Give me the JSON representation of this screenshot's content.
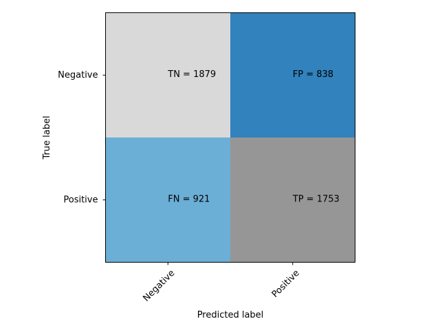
{
  "chart_data": {
    "type": "heatmap",
    "title": "",
    "xlabel": "Predicted label",
    "ylabel": "True label",
    "x_categories": [
      "Negative",
      "Positive"
    ],
    "y_categories": [
      "Negative",
      "Positive"
    ],
    "cells": [
      {
        "row": 0,
        "col": 0,
        "name": "TN",
        "label": "TN = 1879",
        "value": 1879,
        "color": "#d9d9d9"
      },
      {
        "row": 0,
        "col": 1,
        "name": "FP",
        "label": "FP = 838",
        "value": 838,
        "color": "#3182bd"
      },
      {
        "row": 1,
        "col": 0,
        "name": "FN",
        "label": "FN = 921",
        "value": 921,
        "color": "#6baed6"
      },
      {
        "row": 1,
        "col": 1,
        "name": "TP",
        "label": "TP = 1753",
        "value": 1753,
        "color": "#969696"
      }
    ],
    "grid": false,
    "legend": "none"
  }
}
